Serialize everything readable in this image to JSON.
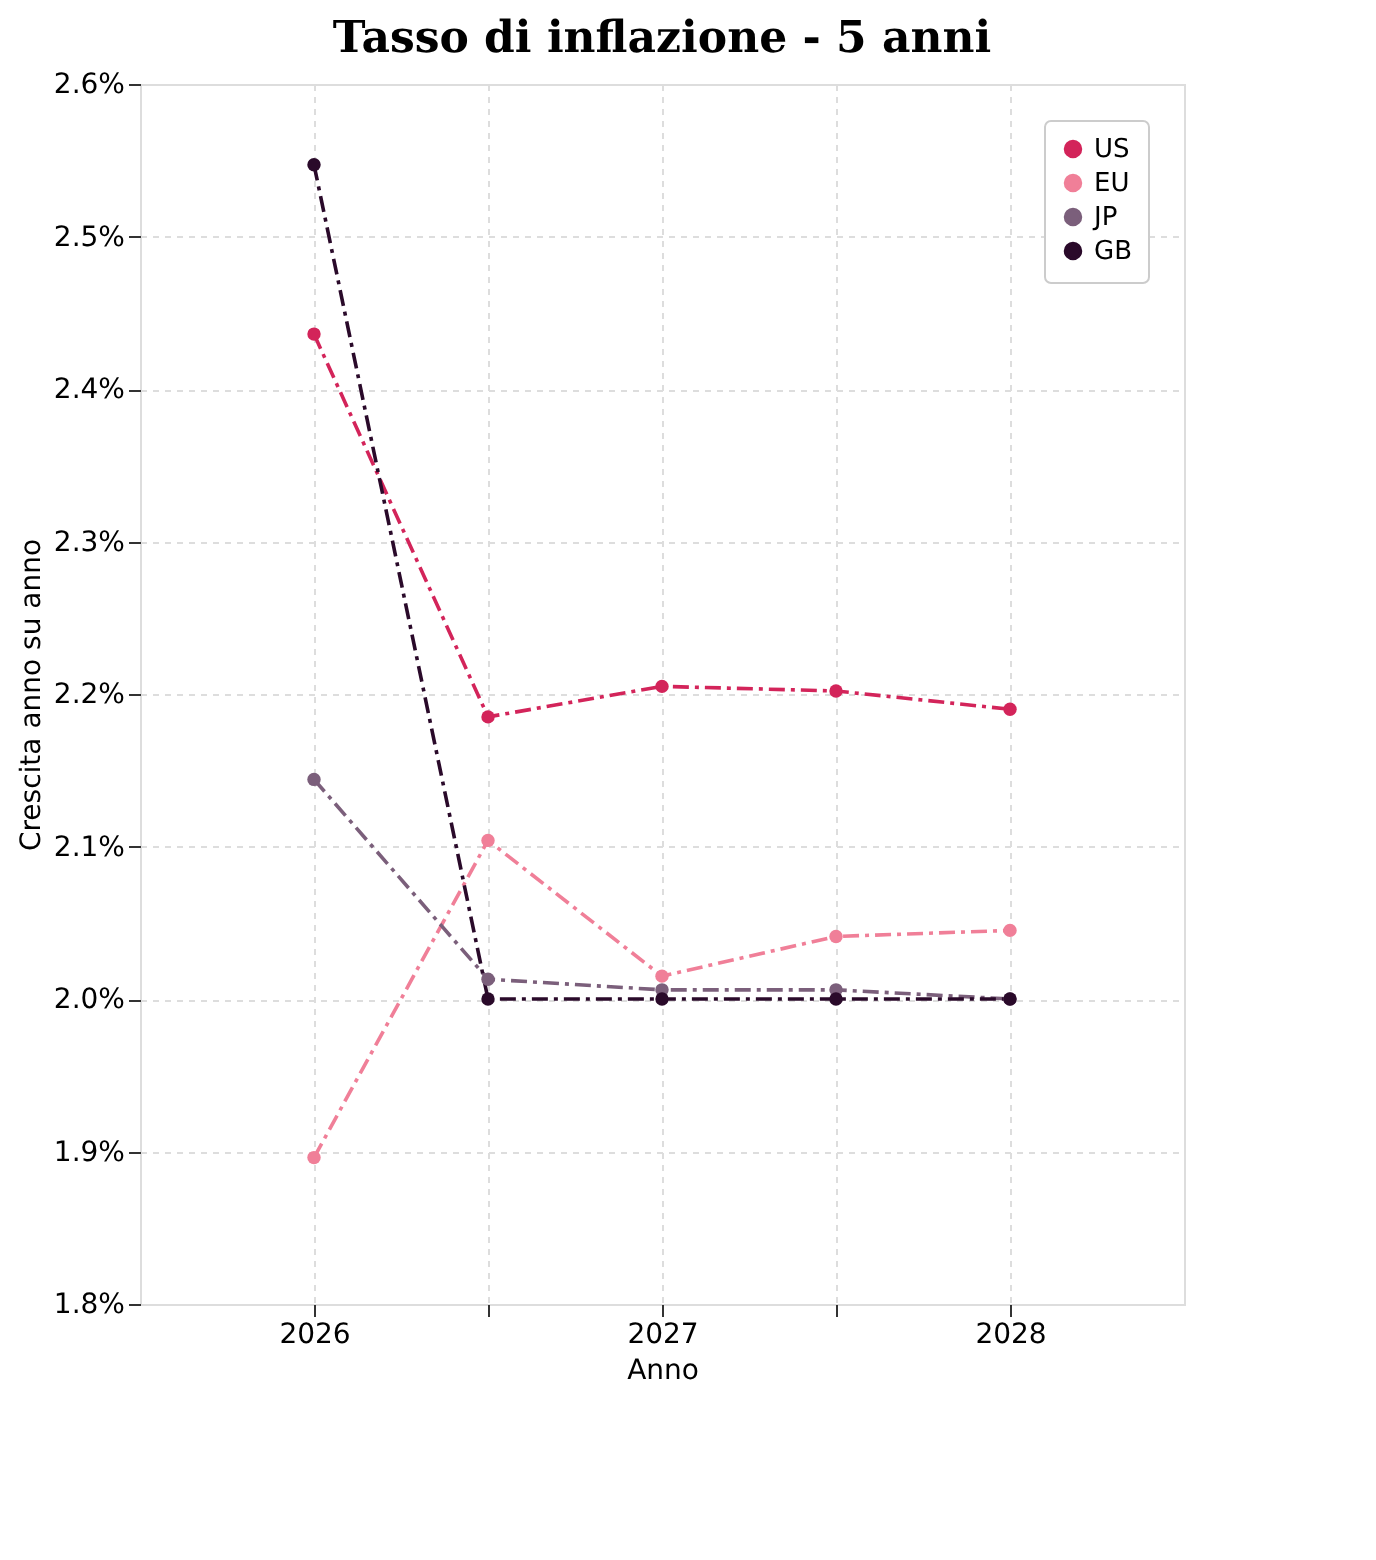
{
  "chart_data": {
    "type": "line",
    "title": "Tasso di inflazione - 5 anni",
    "xlabel": "Anno",
    "ylabel": "Crescita anno su anno",
    "x": [
      2026,
      2026.5,
      2027,
      2027.5,
      2028
    ],
    "series": [
      {
        "name": "US",
        "color": "#d3245a",
        "values": [
          2.436,
          2.185,
          2.205,
          2.202,
          2.19
        ]
      },
      {
        "name": "EU",
        "color": "#f07f98",
        "values": [
          1.896,
          2.104,
          2.015,
          2.041,
          2.045
        ]
      },
      {
        "name": "JP",
        "color": "#7b5f7b",
        "values": [
          2.144,
          2.013,
          2.006,
          2.006,
          2.0
        ]
      },
      {
        "name": "GB",
        "color": "#2a0a2a",
        "values": [
          2.547,
          2.0,
          2.0,
          2.0,
          2.0
        ]
      }
    ],
    "xlim": [
      2025.5,
      2028.5
    ],
    "xticks": [
      2026,
      {
        "value": 2026.5,
        "label": null
      },
      2027,
      {
        "value": 2027.5,
        "label": null
      },
      2028
    ],
    "ylim": [
      1.8,
      2.6
    ],
    "yticks": [
      {
        "value": 1.8,
        "label": "1.8%"
      },
      {
        "value": 1.9,
        "label": "1.9%"
      },
      {
        "value": 2.0,
        "label": "2.0%"
      },
      {
        "value": 2.1,
        "label": "2.1%"
      },
      {
        "value": 2.2,
        "label": "2.2%"
      },
      {
        "value": 2.3,
        "label": "2.3%"
      },
      {
        "value": 2.4,
        "label": "2.4%"
      },
      {
        "value": 2.5,
        "label": "2.5%"
      },
      {
        "value": 2.6,
        "label": "2.6%"
      }
    ],
    "grid": true,
    "legend": "top right",
    "marker": "circle",
    "line_style": "dashed"
  }
}
